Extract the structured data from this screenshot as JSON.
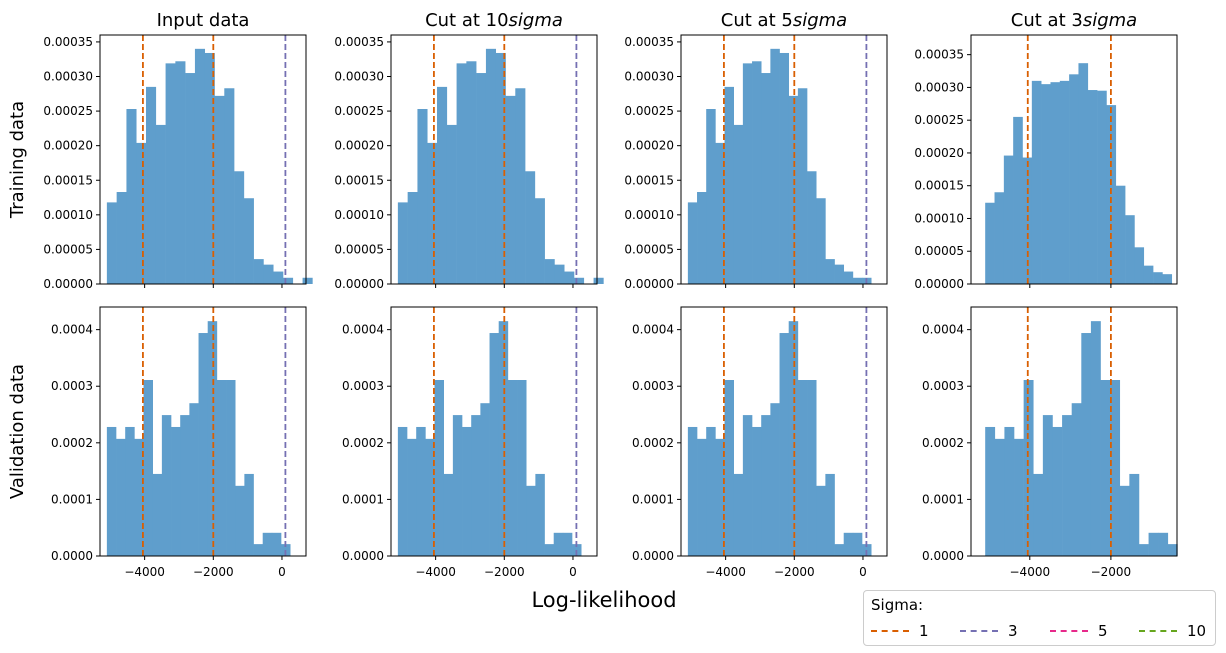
{
  "chart_data": {
    "type": "bar",
    "xlabel": "Log-likelihood",
    "row_labels": [
      "Training data",
      "Validation data"
    ],
    "column_titles": [
      "Input data",
      "Cut at 10sigma",
      "Cut at 5sigma",
      "Cut at 3sigma"
    ],
    "x_ticks_cols_1_3": [
      -4000,
      -2000,
      0
    ],
    "x_ticks_col_4": [
      -4000,
      -2000
    ],
    "vertical_lines": [
      {
        "sigma": "1",
        "x": -4050,
        "color": "#d95f02"
      },
      {
        "sigma": "1",
        "x": -2000,
        "color": "#d95f02"
      },
      {
        "sigma": "3",
        "x": 100,
        "color": "#7570b3"
      }
    ],
    "panels": [
      {
        "row": 0,
        "col": 0,
        "title": "Input data",
        "xlim": [
          -5300,
          700
        ],
        "ylim": [
          0,
          0.00036
        ],
        "yticks": [
          "0.00000",
          "0.00005",
          "0.00010",
          "0.00015",
          "0.00020",
          "0.00025",
          "0.00030",
          "0.00035"
        ],
        "bin_start": -5100,
        "bin_width": 285,
        "values": [
          0.000118,
          0.000133,
          0.000253,
          0.000204,
          0.000285,
          0.00023,
          0.000319,
          0.000322,
          0.000305,
          0.00034,
          0.000334,
          0.000272,
          0.000283,
          0.000163,
          0.000124,
          3.6e-05,
          2.8e-05,
          1.8e-05,
          9e-06,
          0,
          9e-06
        ],
        "show_sigma3": true
      },
      {
        "row": 0,
        "col": 1,
        "title": "Cut at 10sigma",
        "xlim": [
          -5300,
          700
        ],
        "ylim": [
          0,
          0.00036
        ],
        "yticks": [
          "0.00000",
          "0.00005",
          "0.00010",
          "0.00015",
          "0.00020",
          "0.00025",
          "0.00030",
          "0.00035"
        ],
        "bin_start": -5100,
        "bin_width": 285,
        "values": [
          0.000118,
          0.000133,
          0.000253,
          0.000204,
          0.000285,
          0.00023,
          0.000319,
          0.000322,
          0.000305,
          0.00034,
          0.000334,
          0.000272,
          0.000283,
          0.000163,
          0.000124,
          3.6e-05,
          2.8e-05,
          1.8e-05,
          9e-06,
          0,
          9e-06
        ],
        "show_sigma3": true
      },
      {
        "row": 0,
        "col": 2,
        "title": "Cut at 5sigma",
        "xlim": [
          -5300,
          700
        ],
        "ylim": [
          0,
          0.00036
        ],
        "yticks": [
          "0.00000",
          "0.00005",
          "0.00010",
          "0.00015",
          "0.00020",
          "0.00025",
          "0.00030",
          "0.00035"
        ],
        "bin_start": -5100,
        "bin_width": 267,
        "values": [
          0.000118,
          0.000133,
          0.000253,
          0.000204,
          0.000285,
          0.00023,
          0.000319,
          0.000322,
          0.000305,
          0.00034,
          0.000334,
          0.000272,
          0.000283,
          0.000163,
          0.000124,
          3.6e-05,
          2.8e-05,
          1.8e-05,
          9e-06,
          9e-06
        ],
        "show_sigma3": true
      },
      {
        "row": 0,
        "col": 3,
        "title": "Cut at 3sigma",
        "xlim": [
          -5450,
          -370
        ],
        "ylim": [
          0,
          0.00038
        ],
        "yticks": [
          "0.00000",
          "0.00005",
          "0.00010",
          "0.00015",
          "0.00020",
          "0.00025",
          "0.00030",
          "0.00035"
        ],
        "bin_start": -5100,
        "bin_width": 230,
        "values": [
          0.000124,
          0.00014,
          0.000196,
          0.000255,
          0.000193,
          0.00031,
          0.000305,
          0.000308,
          0.00031,
          0.00032,
          0.000337,
          0.000296,
          0.000295,
          0.000273,
          0.00015,
          0.000105,
          5.6e-05,
          2.8e-05,
          1.8e-05,
          1.5e-05
        ],
        "show_sigma3": false
      },
      {
        "row": 1,
        "col": 0,
        "title": "Input data",
        "xlim": [
          -5300,
          700
        ],
        "ylim": [
          0,
          0.00044
        ],
        "yticks": [
          "0.0000",
          "0.0001",
          "0.0002",
          "0.0003",
          "0.0004"
        ],
        "bin_start": -5100,
        "bin_width": 267,
        "values": [
          0.000228,
          0.000207,
          0.000228,
          0.000207,
          0.000311,
          0.000145,
          0.000249,
          0.000228,
          0.000249,
          0.00027,
          0.000394,
          0.000415,
          0.000311,
          0.000311,
          0.000124,
          0.000145,
          2.1e-05,
          4.1e-05,
          4.1e-05,
          2.1e-05
        ],
        "show_sigma3": true
      },
      {
        "row": 1,
        "col": 1,
        "title": "Cut at 10sigma",
        "xlim": [
          -5300,
          700
        ],
        "ylim": [
          0,
          0.00044
        ],
        "yticks": [
          "0.0000",
          "0.0001",
          "0.0002",
          "0.0003",
          "0.0004"
        ],
        "bin_start": -5100,
        "bin_width": 267,
        "values": [
          0.000228,
          0.000207,
          0.000228,
          0.000207,
          0.000311,
          0.000145,
          0.000249,
          0.000228,
          0.000249,
          0.00027,
          0.000394,
          0.000415,
          0.000311,
          0.000311,
          0.000124,
          0.000145,
          2.1e-05,
          4.1e-05,
          4.1e-05,
          2.1e-05
        ],
        "show_sigma3": true
      },
      {
        "row": 1,
        "col": 2,
        "title": "Cut at 5sigma",
        "xlim": [
          -5300,
          700
        ],
        "ylim": [
          0,
          0.00044
        ],
        "yticks": [
          "0.0000",
          "0.0001",
          "0.0002",
          "0.0003",
          "0.0004"
        ],
        "bin_start": -5100,
        "bin_width": 267,
        "values": [
          0.000228,
          0.000207,
          0.000228,
          0.000207,
          0.000311,
          0.000145,
          0.000249,
          0.000228,
          0.000249,
          0.00027,
          0.000394,
          0.000415,
          0.000311,
          0.000311,
          0.000124,
          0.000145,
          2.1e-05,
          4.1e-05,
          4.1e-05,
          2.1e-05
        ],
        "show_sigma3": true
      },
      {
        "row": 1,
        "col": 3,
        "title": "Cut at 3sigma",
        "xlim": [
          -5450,
          -370
        ],
        "ylim": [
          0,
          0.00044
        ],
        "yticks": [
          "0.0000",
          "0.0001",
          "0.0002",
          "0.0003",
          "0.0004"
        ],
        "bin_start": -5100,
        "bin_width": 237,
        "values": [
          0.000228,
          0.000207,
          0.000228,
          0.000207,
          0.000311,
          0.000145,
          0.000249,
          0.000228,
          0.000249,
          0.00027,
          0.000394,
          0.000415,
          0.000311,
          0.000311,
          0.000124,
          0.000145,
          2.1e-05,
          4.1e-05,
          4.1e-05,
          2.1e-05
        ],
        "show_sigma3": false
      }
    ],
    "bar_color": "#5f9ecc",
    "legend": {
      "title": "Sigma:",
      "location": "bottom-right",
      "entries": [
        {
          "label": "1",
          "color": "#d95f02"
        },
        {
          "label": "3",
          "color": "#7570b3"
        },
        {
          "label": "5",
          "color": "#e7298a"
        },
        {
          "label": "10",
          "color": "#66a61e"
        }
      ]
    }
  }
}
